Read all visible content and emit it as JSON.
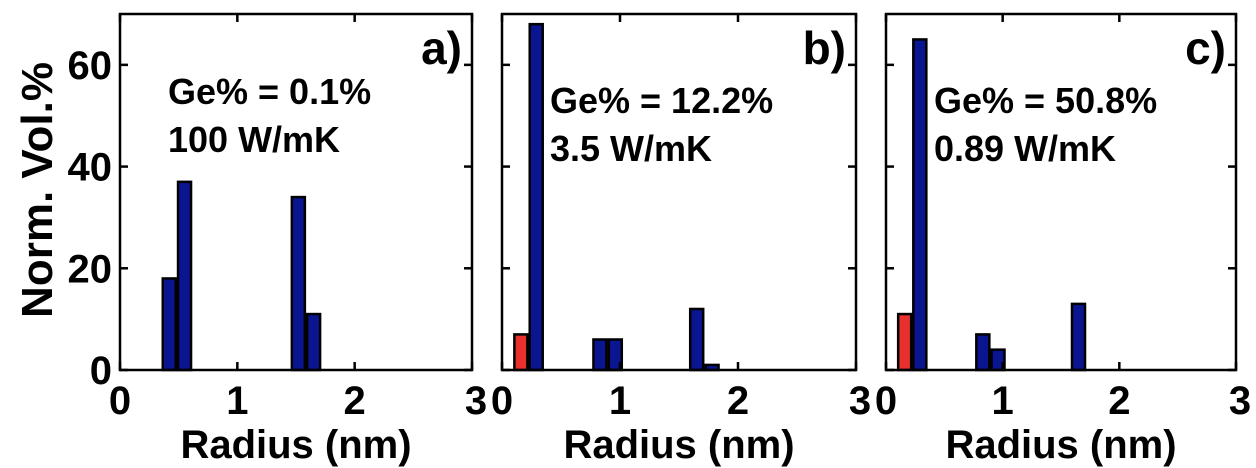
{
  "figure": {
    "ylabel": "Norm. Vol.%",
    "colors": {
      "blue": "#0a1592",
      "red": "#e8312e",
      "axis": "#000000"
    }
  },
  "chart_data": [
    {
      "type": "bar",
      "panel_label": "a)",
      "annotation": [
        "Ge% = 0.1%",
        "100 W/mK"
      ],
      "xlabel": "Radius (nm)",
      "ylabel": "Norm. Vol.%",
      "xlim": [
        0,
        3
      ],
      "ylim": [
        0,
        70
      ],
      "xticks": [
        0,
        1,
        2,
        3
      ],
      "yticks": [
        0,
        20,
        40,
        60
      ],
      "bars": [
        {
          "x": 0.42,
          "value": 18,
          "color": "blue"
        },
        {
          "x": 0.55,
          "value": 37,
          "color": "blue"
        },
        {
          "x": 1.52,
          "value": 34,
          "color": "blue"
        },
        {
          "x": 1.65,
          "value": 11,
          "color": "blue"
        }
      ]
    },
    {
      "type": "bar",
      "panel_label": "b)",
      "annotation": [
        "Ge% = 12.2%",
        "3.5 W/mK"
      ],
      "xlabel": "Radius (nm)",
      "xlim": [
        0,
        3
      ],
      "ylim": [
        0,
        70
      ],
      "xticks": [
        0,
        1,
        2,
        3
      ],
      "yticks": [
        0,
        20,
        40,
        60
      ],
      "bars": [
        {
          "x": 0.16,
          "value": 7,
          "color": "red"
        },
        {
          "x": 0.29,
          "value": 68,
          "color": "blue"
        },
        {
          "x": 0.83,
          "value": 6,
          "color": "blue"
        },
        {
          "x": 0.96,
          "value": 6,
          "color": "blue"
        },
        {
          "x": 1.65,
          "value": 12,
          "color": "blue"
        },
        {
          "x": 1.78,
          "value": 1,
          "color": "blue"
        }
      ]
    },
    {
      "type": "bar",
      "panel_label": "c)",
      "annotation": [
        "Ge% = 50.8%",
        "0.89 W/mK"
      ],
      "xlabel": "Radius (nm)",
      "xlim": [
        0,
        3
      ],
      "ylim": [
        0,
        70
      ],
      "xticks": [
        0,
        1,
        2,
        3
      ],
      "yticks": [
        0,
        20,
        40,
        60
      ],
      "bars": [
        {
          "x": 0.16,
          "value": 11,
          "color": "red"
        },
        {
          "x": 0.29,
          "value": 65,
          "color": "blue"
        },
        {
          "x": 0.83,
          "value": 7,
          "color": "blue"
        },
        {
          "x": 0.96,
          "value": 4,
          "color": "blue"
        },
        {
          "x": 1.65,
          "value": 13,
          "color": "blue"
        }
      ]
    }
  ]
}
